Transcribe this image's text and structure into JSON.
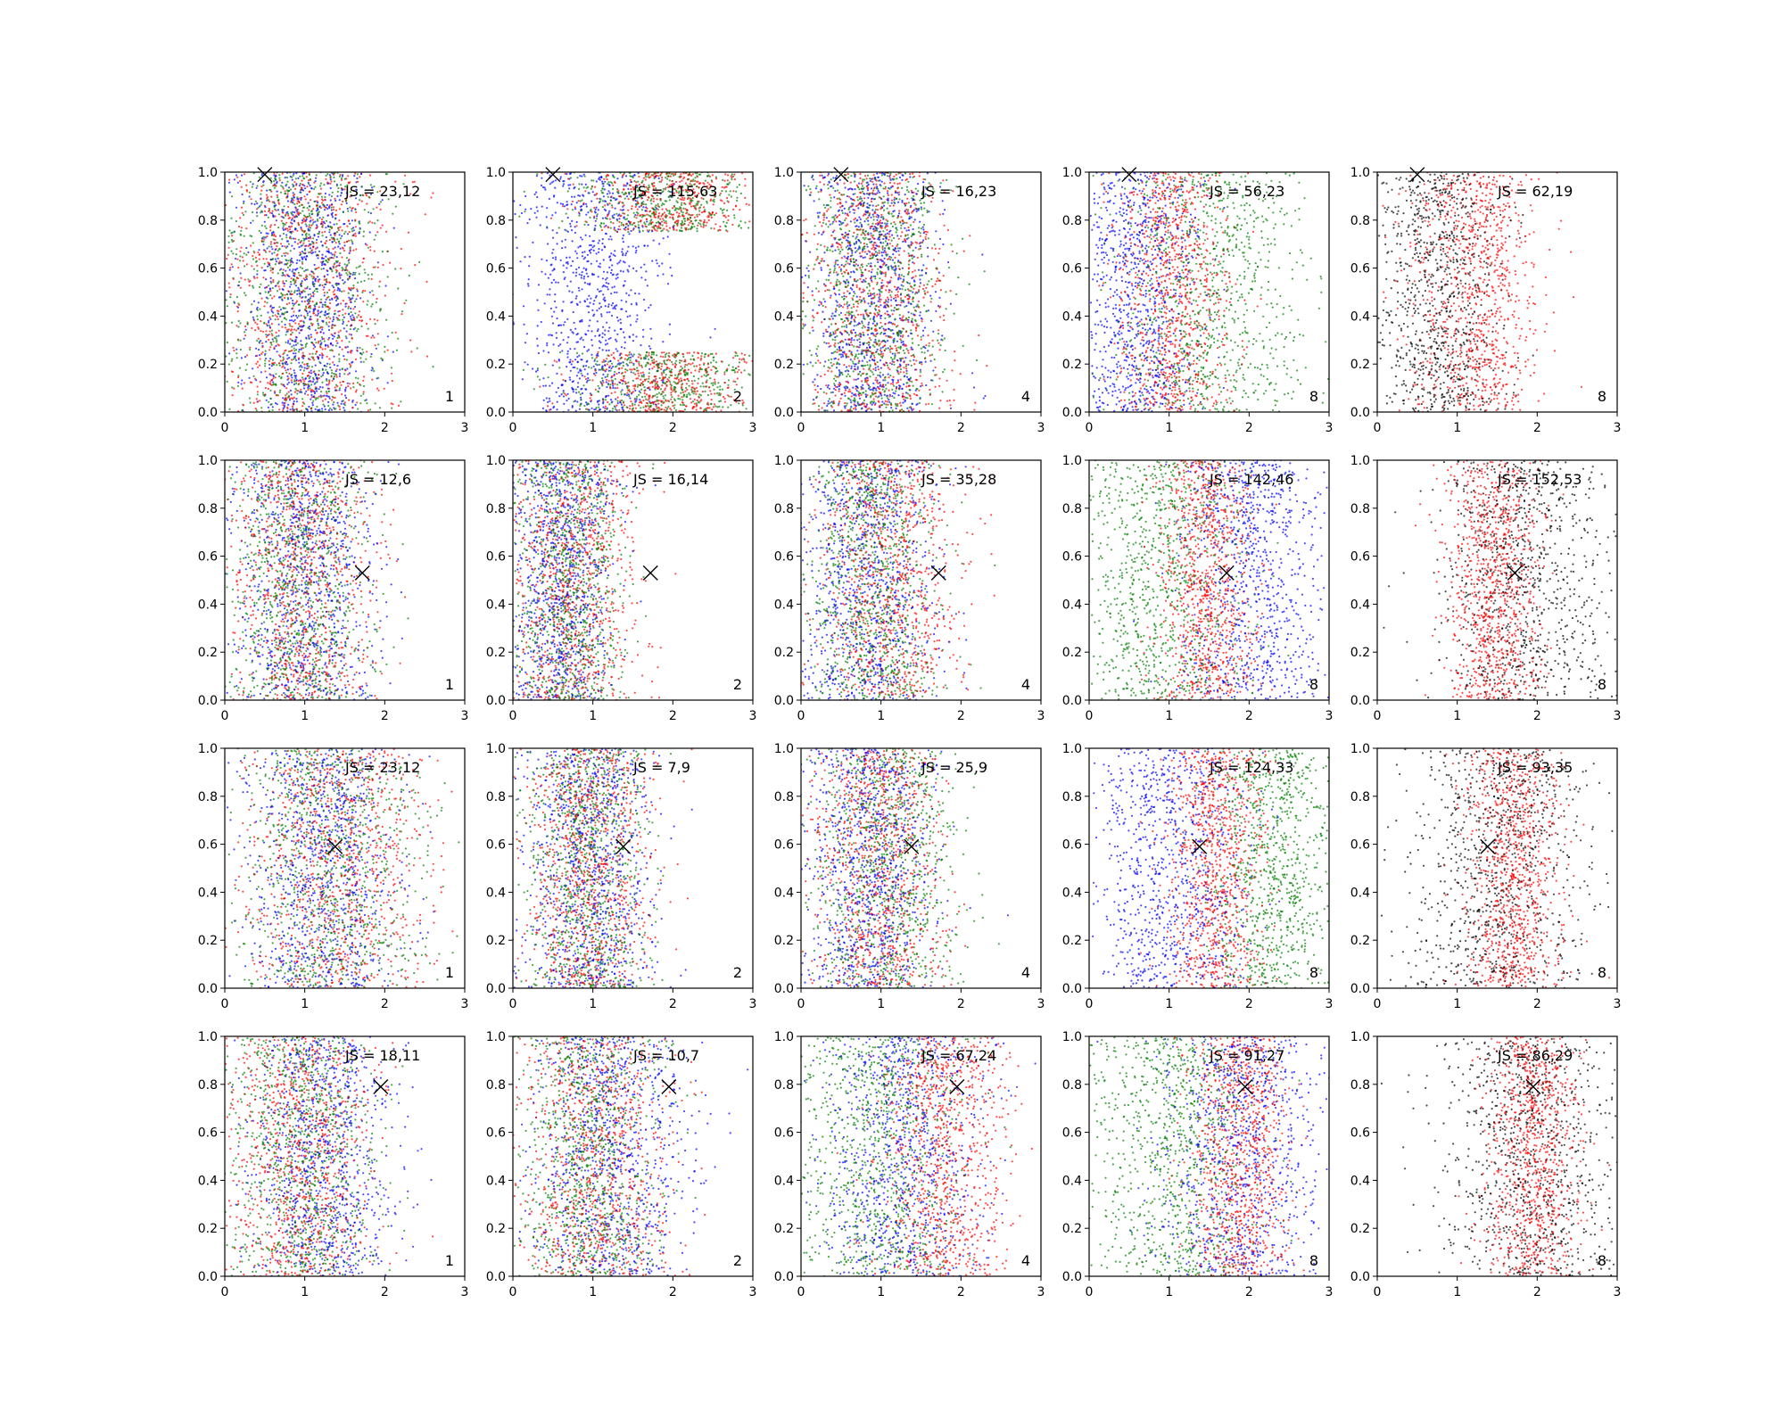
{
  "figure": {
    "palette": {
      "red": "#ff0000",
      "green": "#008000",
      "blue": "#0000ff",
      "black": "#000000"
    }
  },
  "chart_data": [
    {
      "type": "scatter",
      "row": 0,
      "col": 0,
      "label_js": "JS = 23,12",
      "label_n": "1",
      "marker": [
        0.5,
        0.99
      ],
      "series": [
        {
          "color": "red",
          "mean": 1.0,
          "sd": 0.55
        },
        {
          "color": "green",
          "mean": 0.95,
          "sd": 0.55
        },
        {
          "color": "blue",
          "mean": 1.05,
          "sd": 0.4
        }
      ],
      "xlim": [
        0,
        3
      ],
      "ylim": [
        0,
        1
      ],
      "xticks": [
        "0",
        "1",
        "2",
        "3"
      ],
      "yticks": [
        "0.0",
        "0.2",
        "0.4",
        "0.6",
        "0.8",
        "1.0"
      ]
    },
    {
      "type": "scatter",
      "row": 0,
      "col": 1,
      "label_js": "JS = 115,63",
      "label_n": "2",
      "marker": [
        0.5,
        0.99
      ],
      "series": [
        {
          "color": "red",
          "mean": 1.9,
          "sd": 0.5,
          "bimodal": true
        },
        {
          "color": "green",
          "mean": 1.9,
          "sd": 0.6,
          "bimodal": true
        },
        {
          "color": "blue",
          "mean": 1.0,
          "sd": 0.45
        }
      ],
      "xlim": [
        0,
        3
      ],
      "ylim": [
        0,
        1
      ],
      "xticks": [
        "0",
        "1",
        "2",
        "3"
      ],
      "yticks": [
        "0.0",
        "0.2",
        "0.4",
        "0.6",
        "0.8",
        "1.0"
      ]
    },
    {
      "type": "scatter",
      "row": 0,
      "col": 2,
      "label_js": "JS = 16,23",
      "label_n": "4",
      "marker": [
        0.5,
        0.99
      ],
      "series": [
        {
          "color": "red",
          "mean": 0.95,
          "sd": 0.45
        },
        {
          "color": "green",
          "mean": 0.9,
          "sd": 0.45
        },
        {
          "color": "blue",
          "mean": 0.9,
          "sd": 0.4
        }
      ],
      "xlim": [
        0,
        3
      ],
      "ylim": [
        0,
        1
      ],
      "xticks": [
        "0",
        "1",
        "2",
        "3"
      ],
      "yticks": [
        "0.0",
        "0.2",
        "0.4",
        "0.6",
        "0.8",
        "1.0"
      ]
    },
    {
      "type": "scatter",
      "row": 0,
      "col": 3,
      "label_js": "JS = 56,23",
      "label_n": "8",
      "marker": [
        0.5,
        0.99
      ],
      "series": [
        {
          "color": "red",
          "mean": 1.05,
          "sd": 0.35
        },
        {
          "color": "green",
          "mean": 1.5,
          "sd": 0.6
        },
        {
          "color": "blue",
          "mean": 0.6,
          "sd": 0.4
        }
      ],
      "xlim": [
        0,
        3
      ],
      "ylim": [
        0,
        1
      ],
      "xticks": [
        "0",
        "1",
        "2",
        "3"
      ],
      "yticks": [
        "0.0",
        "0.2",
        "0.4",
        "0.6",
        "0.8",
        "1.0"
      ]
    },
    {
      "type": "scatter",
      "row": 0,
      "col": 4,
      "label_js": "JS = 62,19",
      "label_n": "8",
      "marker": [
        0.5,
        0.99
      ],
      "series": [
        {
          "color": "black",
          "mean": 0.75,
          "sd": 0.4
        },
        {
          "color": "red",
          "mean": 1.2,
          "sd": 0.4
        }
      ],
      "xlim": [
        0,
        3
      ],
      "ylim": [
        0,
        1
      ],
      "xticks": [
        "0",
        "1",
        "2",
        "3"
      ],
      "yticks": [
        "0.0",
        "0.2",
        "0.4",
        "0.6",
        "0.8",
        "1.0"
      ]
    },
    {
      "type": "scatter",
      "row": 1,
      "col": 0,
      "label_js": "JS = 12,6",
      "label_n": "1",
      "marker": [
        1.72,
        0.53
      ],
      "series": [
        {
          "color": "red",
          "mean": 0.95,
          "sd": 0.45
        },
        {
          "color": "green",
          "mean": 0.9,
          "sd": 0.45
        },
        {
          "color": "blue",
          "mean": 1.0,
          "sd": 0.45
        }
      ],
      "xlim": [
        0,
        3
      ],
      "ylim": [
        0,
        1
      ],
      "xticks": [
        "0",
        "1",
        "2",
        "3"
      ],
      "yticks": [
        "0.0",
        "0.2",
        "0.4",
        "0.6",
        "0.8",
        "1.0"
      ]
    },
    {
      "type": "scatter",
      "row": 1,
      "col": 1,
      "label_js": "JS = 16,14",
      "label_n": "2",
      "marker": [
        1.72,
        0.53
      ],
      "series": [
        {
          "color": "red",
          "mean": 0.75,
          "sd": 0.4
        },
        {
          "color": "green",
          "mean": 0.7,
          "sd": 0.35
        },
        {
          "color": "blue",
          "mean": 0.6,
          "sd": 0.35
        }
      ],
      "xlim": [
        0,
        3
      ],
      "ylim": [
        0,
        1
      ],
      "xticks": [
        "0",
        "1",
        "2",
        "3"
      ],
      "yticks": [
        "0.0",
        "0.2",
        "0.4",
        "0.6",
        "0.8",
        "1.0"
      ]
    },
    {
      "type": "scatter",
      "row": 1,
      "col": 2,
      "label_js": "JS = 35,28",
      "label_n": "4",
      "marker": [
        1.72,
        0.53
      ],
      "series": [
        {
          "color": "red",
          "mean": 1.1,
          "sd": 0.45
        },
        {
          "color": "green",
          "mean": 0.9,
          "sd": 0.4
        },
        {
          "color": "blue",
          "mean": 0.8,
          "sd": 0.45
        }
      ],
      "xlim": [
        0,
        3
      ],
      "ylim": [
        0,
        1
      ],
      "xticks": [
        "0",
        "1",
        "2",
        "3"
      ],
      "yticks": [
        "0.0",
        "0.2",
        "0.4",
        "0.6",
        "0.8",
        "1.0"
      ]
    },
    {
      "type": "scatter",
      "row": 1,
      "col": 3,
      "label_js": "JS = 142,46",
      "label_n": "8",
      "marker": [
        1.72,
        0.53
      ],
      "series": [
        {
          "color": "green",
          "mean": 0.85,
          "sd": 0.5
        },
        {
          "color": "red",
          "mean": 1.45,
          "sd": 0.3
        },
        {
          "color": "blue",
          "mean": 2.05,
          "sd": 0.45
        }
      ],
      "xlim": [
        0,
        3
      ],
      "ylim": [
        0,
        1
      ],
      "xticks": [
        "0",
        "1",
        "2",
        "3"
      ],
      "yticks": [
        "0.0",
        "0.2",
        "0.4",
        "0.6",
        "0.8",
        "1.0"
      ]
    },
    {
      "type": "scatter",
      "row": 1,
      "col": 4,
      "label_js": "JS = 152,53",
      "label_n": "8",
      "marker": [
        1.72,
        0.53
      ],
      "series": [
        {
          "color": "red",
          "mean": 1.45,
          "sd": 0.3
        },
        {
          "color": "black",
          "mean": 1.85,
          "sd": 0.55
        }
      ],
      "xlim": [
        0,
        3
      ],
      "ylim": [
        0,
        1
      ],
      "xticks": [
        "0",
        "1",
        "2",
        "3"
      ],
      "yticks": [
        "0.0",
        "0.2",
        "0.4",
        "0.6",
        "0.8",
        "1.0"
      ]
    },
    {
      "type": "scatter",
      "row": 2,
      "col": 0,
      "label_js": "JS = 23,12",
      "label_n": "1",
      "marker": [
        1.38,
        0.59
      ],
      "series": [
        {
          "color": "red",
          "mean": 1.4,
          "sd": 0.55
        },
        {
          "color": "green",
          "mean": 1.3,
          "sd": 0.55
        },
        {
          "color": "blue",
          "mean": 1.2,
          "sd": 0.5
        }
      ],
      "xlim": [
        0,
        3
      ],
      "ylim": [
        0,
        1
      ],
      "xticks": [
        "0",
        "1",
        "2",
        "3"
      ],
      "yticks": [
        "0.0",
        "0.2",
        "0.4",
        "0.6",
        "0.8",
        "1.0"
      ]
    },
    {
      "type": "scatter",
      "row": 2,
      "col": 1,
      "label_js": "JS = 7,9",
      "label_n": "2",
      "marker": [
        1.38,
        0.59
      ],
      "series": [
        {
          "color": "red",
          "mean": 0.95,
          "sd": 0.4
        },
        {
          "color": "green",
          "mean": 0.9,
          "sd": 0.4
        },
        {
          "color": "blue",
          "mean": 0.95,
          "sd": 0.4
        }
      ],
      "xlim": [
        0,
        3
      ],
      "ylim": [
        0,
        1
      ],
      "xticks": [
        "0",
        "1",
        "2",
        "3"
      ],
      "yticks": [
        "0.0",
        "0.2",
        "0.4",
        "0.6",
        "0.8",
        "1.0"
      ]
    },
    {
      "type": "scatter",
      "row": 2,
      "col": 2,
      "label_js": "JS = 25,9",
      "label_n": "4",
      "marker": [
        1.38,
        0.59
      ],
      "series": [
        {
          "color": "red",
          "mean": 1.0,
          "sd": 0.4
        },
        {
          "color": "green",
          "mean": 1.05,
          "sd": 0.45
        },
        {
          "color": "blue",
          "mean": 0.85,
          "sd": 0.4
        }
      ],
      "xlim": [
        0,
        3
      ],
      "ylim": [
        0,
        1
      ],
      "xticks": [
        "0",
        "1",
        "2",
        "3"
      ],
      "yticks": [
        "0.0",
        "0.2",
        "0.4",
        "0.6",
        "0.8",
        "1.0"
      ]
    },
    {
      "type": "scatter",
      "row": 2,
      "col": 3,
      "label_js": "JS = 124,33",
      "label_n": "8",
      "marker": [
        1.38,
        0.59
      ],
      "series": [
        {
          "color": "blue",
          "mean": 1.0,
          "sd": 0.5
        },
        {
          "color": "red",
          "mean": 1.6,
          "sd": 0.3
        },
        {
          "color": "green",
          "mean": 2.3,
          "sd": 0.4
        }
      ],
      "xlim": [
        0,
        3
      ],
      "ylim": [
        0,
        1
      ],
      "xticks": [
        "0",
        "1",
        "2",
        "3"
      ],
      "yticks": [
        "0.0",
        "0.2",
        "0.4",
        "0.6",
        "0.8",
        "1.0"
      ]
    },
    {
      "type": "scatter",
      "row": 2,
      "col": 4,
      "label_js": "JS = 93,35",
      "label_n": "8",
      "marker": [
        1.38,
        0.59
      ],
      "series": [
        {
          "color": "black",
          "mean": 1.5,
          "sd": 0.55
        },
        {
          "color": "red",
          "mean": 1.7,
          "sd": 0.3
        }
      ],
      "xlim": [
        0,
        3
      ],
      "ylim": [
        0,
        1
      ],
      "xticks": [
        "0",
        "1",
        "2",
        "3"
      ],
      "yticks": [
        "0.0",
        "0.2",
        "0.4",
        "0.6",
        "0.8",
        "1.0"
      ]
    },
    {
      "type": "scatter",
      "row": 3,
      "col": 0,
      "label_js": "JS = 18,11",
      "label_n": "1",
      "marker": [
        1.95,
        0.79
      ],
      "series": [
        {
          "color": "red",
          "mean": 0.95,
          "sd": 0.45
        },
        {
          "color": "green",
          "mean": 0.95,
          "sd": 0.45
        },
        {
          "color": "blue",
          "mean": 1.25,
          "sd": 0.45
        }
      ],
      "xlim": [
        0,
        3
      ],
      "ylim": [
        0,
        1
      ],
      "xticks": [
        "0",
        "1",
        "2",
        "3"
      ],
      "yticks": [
        "0.0",
        "0.2",
        "0.4",
        "0.6",
        "0.8",
        "1.0"
      ]
    },
    {
      "type": "scatter",
      "row": 3,
      "col": 1,
      "label_js": "JS = 10,7",
      "label_n": "2",
      "marker": [
        1.95,
        0.79
      ],
      "series": [
        {
          "color": "red",
          "mean": 1.0,
          "sd": 0.45
        },
        {
          "color": "green",
          "mean": 0.9,
          "sd": 0.45
        },
        {
          "color": "blue",
          "mean": 1.2,
          "sd": 0.5
        }
      ],
      "xlim": [
        0,
        3
      ],
      "ylim": [
        0,
        1
      ],
      "xticks": [
        "0",
        "1",
        "2",
        "3"
      ],
      "yticks": [
        "0.0",
        "0.2",
        "0.4",
        "0.6",
        "0.8",
        "1.0"
      ]
    },
    {
      "type": "scatter",
      "row": 3,
      "col": 2,
      "label_js": "JS = 67,24",
      "label_n": "4",
      "marker": [
        1.95,
        0.79
      ],
      "series": [
        {
          "color": "green",
          "mean": 0.9,
          "sd": 0.55
        },
        {
          "color": "blue",
          "mean": 1.3,
          "sd": 0.5
        },
        {
          "color": "red",
          "mean": 1.8,
          "sd": 0.4
        }
      ],
      "xlim": [
        0,
        3
      ],
      "ylim": [
        0,
        1
      ],
      "xticks": [
        "0",
        "1",
        "2",
        "3"
      ],
      "yticks": [
        "0.0",
        "0.2",
        "0.4",
        "0.6",
        "0.8",
        "1.0"
      ]
    },
    {
      "type": "scatter",
      "row": 3,
      "col": 3,
      "label_js": "JS = 91,27",
      "label_n": "8",
      "marker": [
        1.95,
        0.79
      ],
      "series": [
        {
          "color": "green",
          "mean": 1.0,
          "sd": 0.55
        },
        {
          "color": "blue",
          "mean": 1.9,
          "sd": 0.5
        },
        {
          "color": "red",
          "mean": 1.9,
          "sd": 0.3
        }
      ],
      "xlim": [
        0,
        3
      ],
      "ylim": [
        0,
        1
      ],
      "xticks": [
        "0",
        "1",
        "2",
        "3"
      ],
      "yticks": [
        "0.0",
        "0.2",
        "0.4",
        "0.6",
        "0.8",
        "1.0"
      ]
    },
    {
      "type": "scatter",
      "row": 3,
      "col": 4,
      "label_js": "JS = 86,29",
      "label_n": "8",
      "marker": [
        1.95,
        0.79
      ],
      "series": [
        {
          "color": "black",
          "mean": 1.9,
          "sd": 0.55
        },
        {
          "color": "red",
          "mean": 1.95,
          "sd": 0.3
        }
      ],
      "xlim": [
        0,
        3
      ],
      "ylim": [
        0,
        1
      ],
      "xticks": [
        "0",
        "1",
        "2",
        "3"
      ],
      "yticks": [
        "0.0",
        "0.2",
        "0.4",
        "0.6",
        "0.8",
        "1.0"
      ]
    }
  ]
}
